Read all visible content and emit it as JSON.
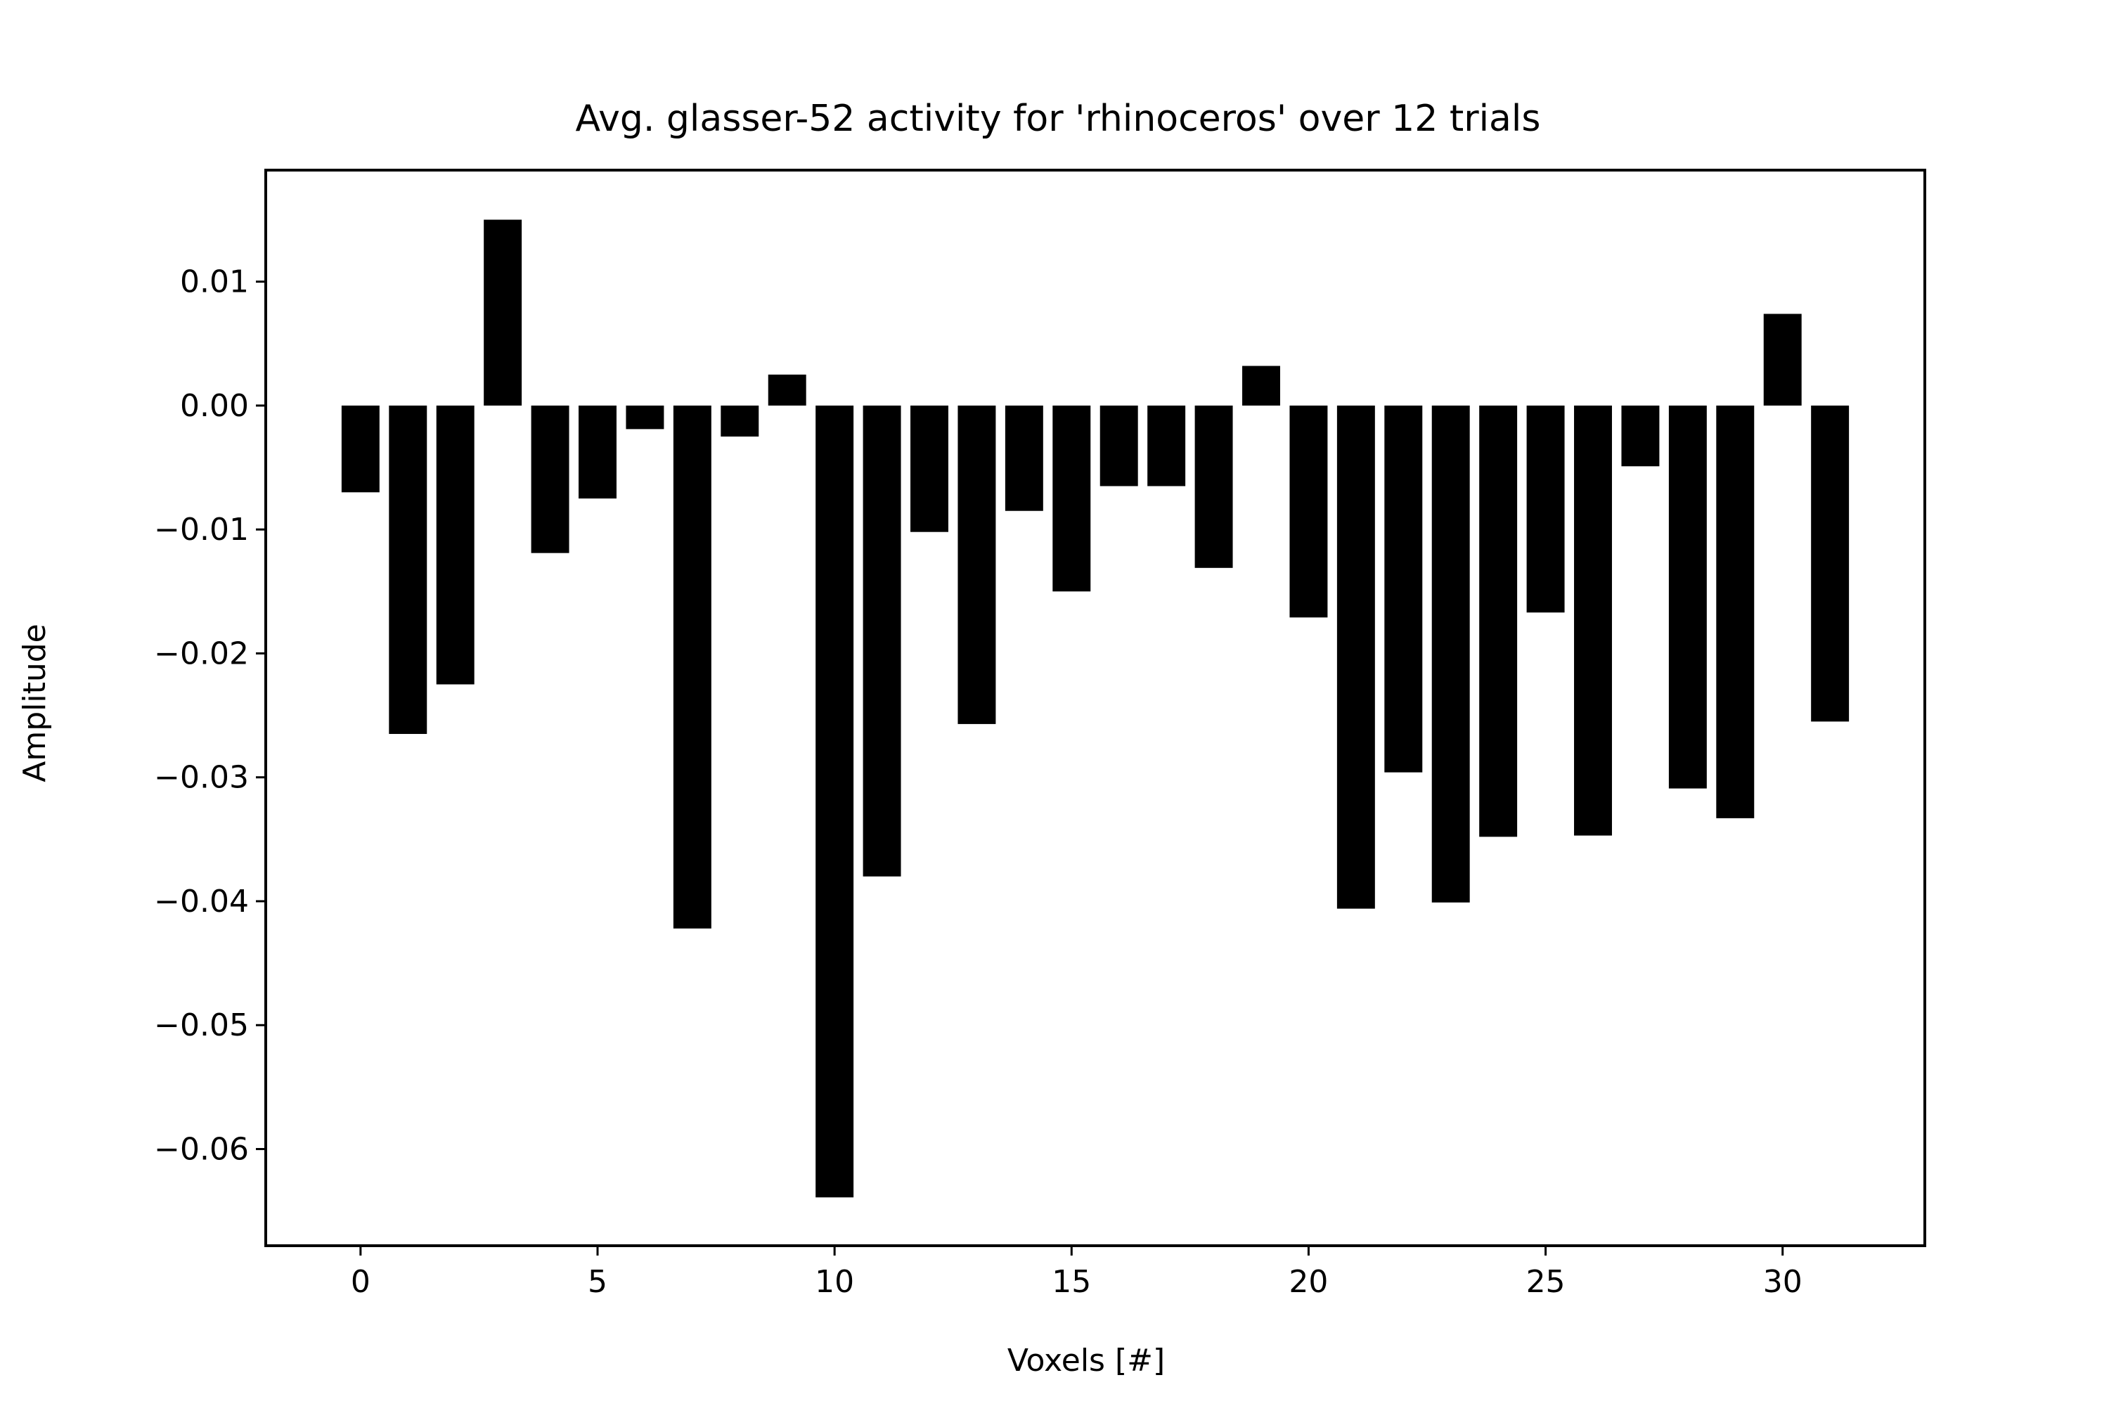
{
  "chart_data": {
    "type": "bar",
    "title": "Avg. glasser-52 activity for 'rhinoceros' over 12 trials",
    "xlabel": "Voxels [#]",
    "ylabel": "Amplitude",
    "x": [
      0,
      1,
      2,
      3,
      4,
      5,
      6,
      7,
      8,
      9,
      10,
      11,
      12,
      13,
      14,
      15,
      16,
      17,
      18,
      19,
      20,
      21,
      22,
      23,
      24,
      25,
      26,
      27,
      28,
      29,
      30,
      31
    ],
    "values": [
      -0.007,
      -0.0265,
      -0.0225,
      0.015,
      -0.0119,
      -0.0075,
      -0.0019,
      -0.0422,
      -0.0025,
      0.0025,
      -0.0639,
      -0.038,
      -0.0102,
      -0.0257,
      -0.0085,
      -0.015,
      -0.0065,
      -0.0065,
      -0.0131,
      0.0032,
      -0.0171,
      -0.0406,
      -0.0296,
      -0.0401,
      -0.0348,
      -0.0167,
      -0.0347,
      -0.0049,
      -0.0309,
      -0.0333,
      0.0074,
      -0.0255
    ],
    "xlim": [
      -2,
      33
    ],
    "ylim": [
      -0.0678,
      0.019
    ],
    "xticks": [
      0,
      5,
      10,
      15,
      20,
      25,
      30
    ],
    "xtick_labels": [
      "0",
      "5",
      "10",
      "15",
      "20",
      "25",
      "30"
    ],
    "yticks": [
      0.01,
      0.0,
      -0.01,
      -0.02,
      -0.03,
      -0.04,
      -0.05,
      -0.06
    ],
    "ytick_labels": [
      "0.01",
      "0.00",
      "−0.01",
      "−0.02",
      "−0.03",
      "−0.04",
      "−0.05",
      "−0.06"
    ],
    "bar_color": "#000000",
    "grid": false,
    "legend": "none"
  }
}
